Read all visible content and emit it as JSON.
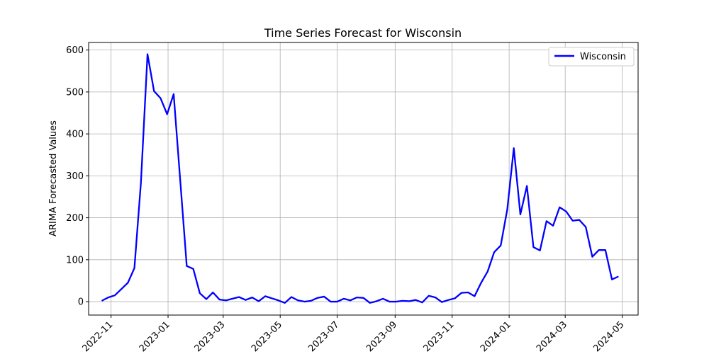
{
  "chart_data": {
    "type": "line",
    "title": "Time Series Forecast for Wisconsin",
    "xlabel": "",
    "ylabel": "ARIMA Forecasted Values",
    "grid": true,
    "legend": "top-right",
    "xlim": [
      "2022-10-08",
      "2024-05-18"
    ],
    "ylim": [
      -32,
      618
    ],
    "x_ticks": [
      "2022-11",
      "2023-01",
      "2023-03",
      "2023-05",
      "2023-07",
      "2023-09",
      "2023-11",
      "2024-01",
      "2024-03",
      "2024-05"
    ],
    "y_ticks": [
      0,
      100,
      200,
      300,
      400,
      500,
      600
    ],
    "series": [
      {
        "name": "Wisconsin",
        "color": "#0000ff",
        "x": [
          "2022-10-22",
          "2022-10-29",
          "2022-11-05",
          "2022-11-12",
          "2022-11-19",
          "2022-11-26",
          "2022-12-03",
          "2022-12-10",
          "2022-12-17",
          "2022-12-24",
          "2022-12-31",
          "2023-01-07",
          "2023-01-14",
          "2023-01-21",
          "2023-01-28",
          "2023-02-04",
          "2023-02-11",
          "2023-02-18",
          "2023-02-25",
          "2023-03-04",
          "2023-03-11",
          "2023-03-18",
          "2023-03-25",
          "2023-04-01",
          "2023-04-08",
          "2023-04-15",
          "2023-04-22",
          "2023-04-29",
          "2023-05-06",
          "2023-05-13",
          "2023-05-20",
          "2023-05-27",
          "2023-06-03",
          "2023-06-10",
          "2023-06-17",
          "2023-06-24",
          "2023-07-01",
          "2023-07-08",
          "2023-07-15",
          "2023-07-22",
          "2023-07-29",
          "2023-08-05",
          "2023-08-12",
          "2023-08-19",
          "2023-08-26",
          "2023-09-02",
          "2023-09-09",
          "2023-09-16",
          "2023-09-23",
          "2023-09-30",
          "2023-10-07",
          "2023-10-14",
          "2023-10-21",
          "2023-10-28",
          "2023-11-04",
          "2023-11-11",
          "2023-11-18",
          "2023-11-25",
          "2023-12-02",
          "2023-12-09",
          "2023-12-16",
          "2023-12-23",
          "2023-12-30",
          "2024-01-06",
          "2024-01-13",
          "2024-01-20",
          "2024-01-27",
          "2024-02-03",
          "2024-02-10",
          "2024-02-17",
          "2024-02-24",
          "2024-03-02",
          "2024-03-09",
          "2024-03-16",
          "2024-03-23",
          "2024-03-30",
          "2024-04-06",
          "2024-04-13",
          "2024-04-20",
          "2024-04-27"
        ],
        "values": [
          2,
          10,
          15,
          30,
          45,
          80,
          285,
          590,
          502,
          485,
          447,
          495,
          290,
          85,
          78,
          20,
          6,
          22,
          5,
          3,
          7,
          11,
          4,
          10,
          1,
          13,
          8,
          3,
          -3,
          11,
          3,
          0,
          2,
          9,
          12,
          0,
          0,
          7,
          3,
          10,
          9,
          -3,
          1,
          7,
          0,
          0,
          2,
          1,
          4,
          -2,
          14,
          10,
          -1,
          4,
          8,
          21,
          22,
          13,
          45,
          72,
          118,
          134,
          220,
          366,
          208,
          276,
          130,
          122,
          192,
          181,
          225,
          215,
          193,
          195,
          178,
          107,
          123,
          123,
          53,
          60
        ]
      }
    ]
  }
}
